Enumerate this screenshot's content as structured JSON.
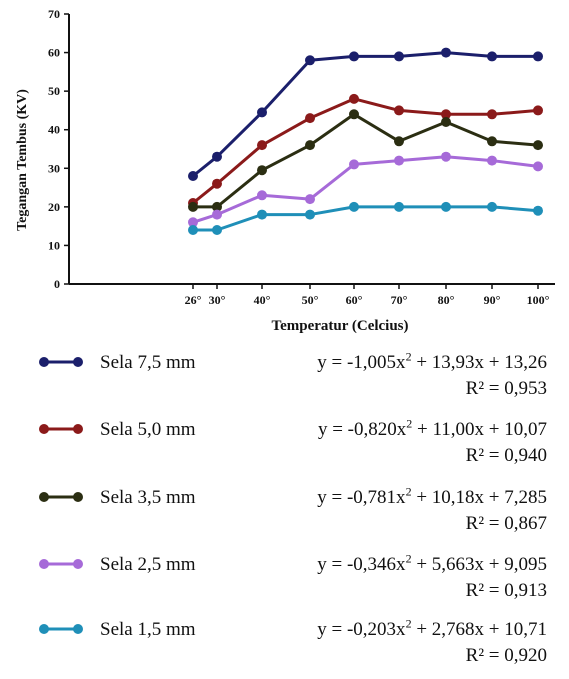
{
  "chart_data": {
    "type": "line",
    "title": "",
    "xlabel": "Temperatur (Celcius)",
    "ylabel": "Tegangan Tembus (KV)",
    "x": [
      "26°",
      "30°",
      "40°",
      "50°",
      "60°",
      "70°",
      "80°",
      "90°",
      "100°"
    ],
    "ylim": [
      0,
      70
    ],
    "yticks": [
      "0",
      "10",
      "20",
      "30",
      "40",
      "50",
      "60",
      "70"
    ],
    "grid": false,
    "legend_position": "bottom",
    "series": [
      {
        "name": "Sela 7,5 mm",
        "color": "#1b1f6b",
        "values": [
          28,
          33,
          44.5,
          58,
          59,
          59,
          60,
          59,
          59
        ],
        "eq_prefix": "y = -1,005x",
        "eq_exp": "2",
        "eq_suffix": " + 13,93x + 13,26",
        "r2": "R² = 0,953"
      },
      {
        "name": "Sela 5,0 mm",
        "color": "#8b1a1a",
        "values": [
          21,
          26,
          36,
          43,
          48,
          45,
          44,
          44,
          45
        ],
        "eq_prefix": "y = -0,820x",
        "eq_exp": "2",
        "eq_suffix": " + 11,00x + 10,07",
        "r2": "R² = 0,940"
      },
      {
        "name": "Sela 3,5 mm",
        "color": "#2b2e12",
        "values": [
          20,
          20,
          29.5,
          36,
          44,
          37,
          42,
          37,
          36
        ],
        "eq_prefix": "y = -0,781x",
        "eq_exp": "2",
        "eq_suffix": " + 10,18x + 7,285",
        "r2": "R² = 0,867"
      },
      {
        "name": "Sela 2,5 mm",
        "color": "#a66ad8",
        "values": [
          16,
          18,
          23,
          22,
          31,
          32,
          33,
          32,
          30.5
        ],
        "eq_prefix": "y = -0,346x",
        "eq_exp": "2",
        "eq_suffix": " + 5,663x + 9,095",
        "r2": "R² = 0,913"
      },
      {
        "name": "Sela 1,5 mm",
        "color": "#1f8fb8",
        "values": [
          14,
          14,
          18,
          18,
          20,
          20,
          20,
          20,
          19
        ],
        "eq_prefix": "y = -0,203x",
        "eq_exp": "2",
        "eq_suffix": " + 2,768x + 10,71",
        "r2": "R² = 0,920"
      }
    ]
  }
}
